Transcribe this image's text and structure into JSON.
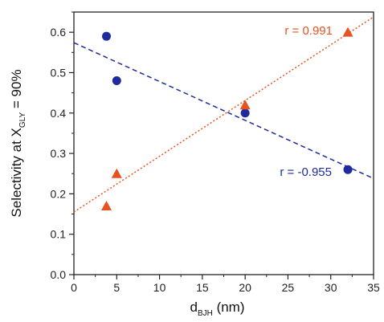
{
  "chart_data": {
    "type": "scatter",
    "xlim": [
      0,
      35
    ],
    "ylim": [
      0.0,
      0.65
    ],
    "x_ticks": [
      "0",
      "5",
      "10",
      "15",
      "20",
      "25",
      "30",
      "35"
    ],
    "y_ticks": [
      "0.0",
      "0.1",
      "0.2",
      "0.3",
      "0.4",
      "0.5",
      "0.6"
    ],
    "xlabel_main": "d",
    "xlabel_sub": "BJH",
    "xlabel_unit": " (nm)",
    "ylabel_main": "Selectivity at X",
    "ylabel_sub": "GLY",
    "ylabel_tail": " = 90%",
    "grid": false,
    "series": [
      {
        "marker": "circle",
        "color": "#1f2a9c",
        "x": [
          3.8,
          5.0,
          20.0,
          32.0
        ],
        "y": [
          0.59,
          0.48,
          0.4,
          0.26
        ],
        "fit": {
          "x": [
            0,
            35
          ],
          "y": [
            0.574,
            0.238
          ],
          "style": "dashed"
        },
        "annotation": "r = -0.955"
      },
      {
        "marker": "triangle",
        "color": "#e8521e",
        "x": [
          3.8,
          5.0,
          20.0,
          32.0
        ],
        "y": [
          0.17,
          0.25,
          0.42,
          0.6
        ],
        "fit": {
          "x": [
            0,
            35
          ],
          "y": [
            0.155,
            0.638
          ],
          "style": "dotted"
        },
        "annotation": "r = 0.991"
      }
    ]
  }
}
